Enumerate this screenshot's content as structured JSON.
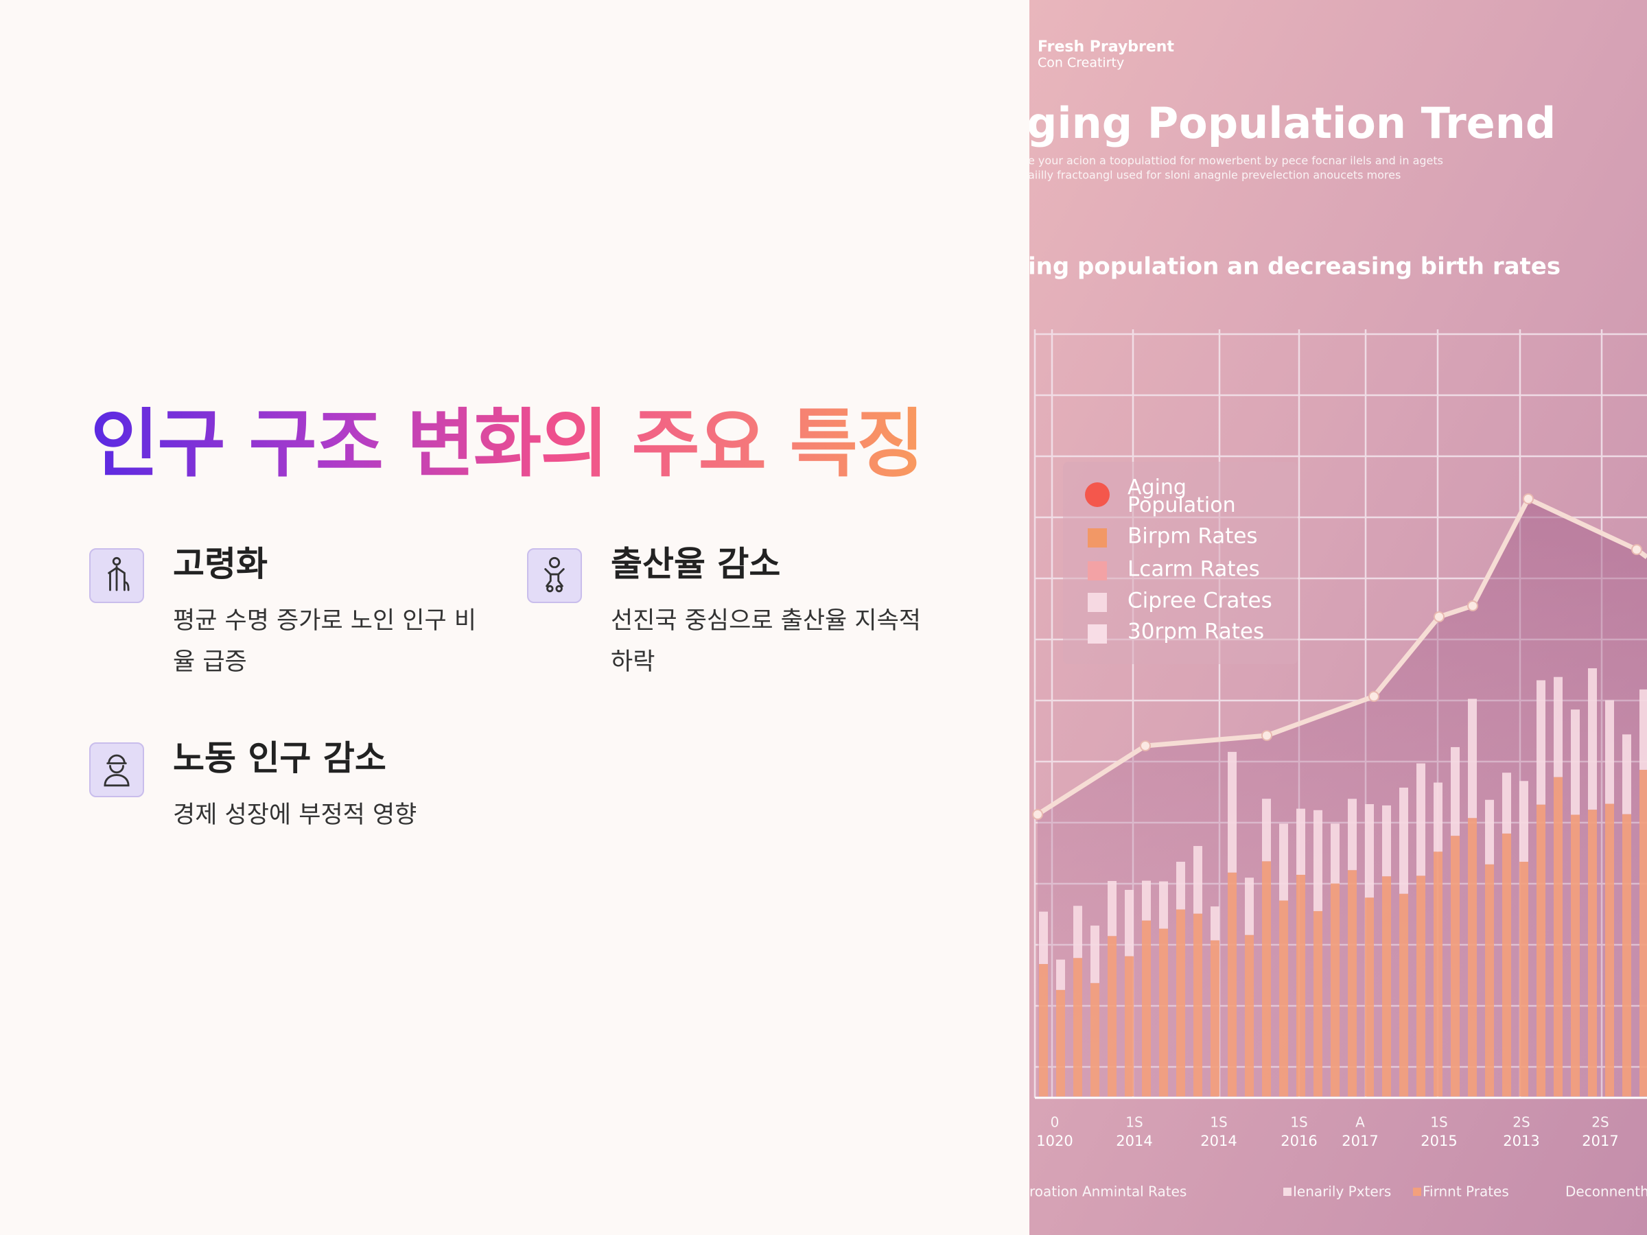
{
  "heading": "인구 구조 변화의 주요 특징",
  "features": [
    {
      "title": "고령화",
      "description": "평균 수명 증가로 노인 인구 비율 급증"
    },
    {
      "title": "출산율 감소",
      "description": "선진국 중심으로 출산율 지속적 하락"
    },
    {
      "title": "노동 인구 감소",
      "description": "경제 성장에 부정적 영향"
    }
  ],
  "image": {
    "brand": [
      "Fresh Praybrent",
      "Con Creatirty"
    ],
    "title": "ging Population Trend",
    "subtitle": [
      "e your acion a toopulattiod for mowerbent by pece focnar ilels and in agets",
      "aiilly fractoangl used for sloni anagnle prevelection anoucets mores"
    ],
    "chart_title": "ing population an decreasing birth rates",
    "legend": [
      "Aging Population",
      "Birpm Rates",
      "Lcarm Rates",
      "Cipree Crates",
      "30rpm Rates"
    ],
    "x_ticks_top": [
      "0",
      "1S",
      "1S",
      "1S",
      "A",
      "1S",
      "2S",
      "2S"
    ],
    "x_ticks": [
      "1020",
      "2014",
      "2014",
      "2016",
      "2017",
      "2015",
      "2013",
      "2017"
    ],
    "footer": [
      "roation Anmintal Rates",
      "Ienarily Pxters",
      "Firnnt Prates",
      "Deconnenthi"
    ]
  }
}
